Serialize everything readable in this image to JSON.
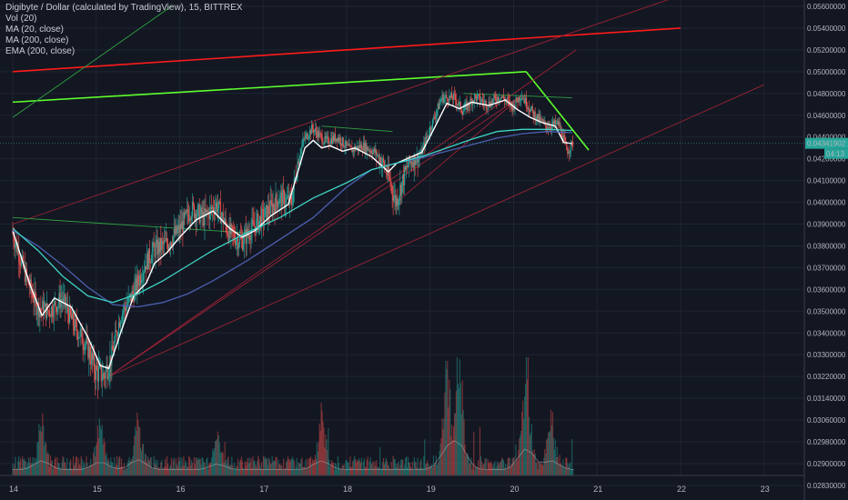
{
  "legend": {
    "title": "Digibyte / Dollar (calculated by TradingView), 15, BITTREX",
    "studies": [
      "Vol (20)",
      "MA (20, close)",
      "MA (200, close)",
      "EMA (200, close)"
    ]
  },
  "current_price": {
    "value": "0.04341902",
    "countdown": "04:13",
    "color": "#26a69a"
  },
  "colors": {
    "background": "#131722",
    "grid": "#1f2433",
    "candle_up": "#26a69a",
    "candle_down": "#ef5350",
    "ma20": "#ffffff",
    "ma200": "#4c5fb0",
    "ema200": "#3fd3c4",
    "line_red": "#ff1a1a",
    "line_green": "#5dff2d",
    "channel_red": "#9b2235",
    "channel_green": "#2fa042"
  },
  "chart_data": {
    "type": "candlestick",
    "symbol": "Digibyte / Dollar",
    "interval": "15",
    "exchange": "BITTREX",
    "y_axis": {
      "ticks": [
        "0.05600000",
        "0.05400000",
        "0.05200000",
        "0.05000000",
        "0.04800000",
        "0.04600000",
        "0.04400000",
        "0.04200000",
        "0.04100000",
        "0.04000000",
        "0.03900000",
        "0.03800000",
        "0.03700000",
        "0.03600000",
        "0.03500000",
        "0.03400000",
        "0.03300000",
        "0.03220000",
        "0.03140000",
        "0.03060000",
        "0.02980000",
        "0.02900000",
        "0.02830000",
        "0.02760000"
      ]
    },
    "x_axis": {
      "ticks": [
        "14",
        "15",
        "16",
        "17",
        "18",
        "19",
        "20",
        "21",
        "22",
        "23"
      ],
      "range": [
        14,
        23
      ]
    },
    "series": [
      {
        "name": "MA (20, close)",
        "color": "#ffffff",
        "x": [
          14.0,
          14.2,
          14.35,
          14.5,
          14.7,
          14.9,
          15.05,
          15.15,
          15.3,
          15.45,
          15.6,
          15.7,
          15.85,
          16.0,
          16.2,
          16.4,
          16.6,
          16.75,
          16.9,
          17.1,
          17.3,
          17.5,
          17.6,
          17.7,
          17.8,
          17.95,
          18.1,
          18.3,
          18.5,
          18.6,
          18.75,
          18.9,
          19.05,
          19.2,
          19.35,
          19.5,
          19.7,
          19.9,
          20.05,
          20.2,
          20.35,
          20.5,
          20.6,
          20.7
        ],
        "y": [
          0.0387,
          0.0363,
          0.0348,
          0.0356,
          0.0352,
          0.0338,
          0.0326,
          0.0325,
          0.0341,
          0.0357,
          0.0363,
          0.0372,
          0.0377,
          0.0384,
          0.0392,
          0.0396,
          0.0388,
          0.0384,
          0.0387,
          0.0394,
          0.0399,
          0.043,
          0.0437,
          0.043,
          0.0432,
          0.0427,
          0.043,
          0.0422,
          0.0414,
          0.0418,
          0.0421,
          0.0426,
          0.0448,
          0.0471,
          0.0466,
          0.0472,
          0.0469,
          0.0474,
          0.0465,
          0.0458,
          0.0453,
          0.045,
          0.0435,
          0.0434
        ]
      },
      {
        "name": "MA (200, close)",
        "color": "#4c5fb0",
        "x": [
          14.0,
          14.3,
          14.6,
          14.9,
          15.2,
          15.5,
          15.8,
          16.1,
          16.4,
          16.8,
          17.2,
          17.6,
          18.0,
          18.3,
          18.6,
          18.9,
          19.2,
          19.5,
          19.8,
          20.1,
          20.4,
          20.7
        ],
        "y": [
          0.0387,
          0.038,
          0.0371,
          0.0361,
          0.0353,
          0.0352,
          0.0354,
          0.0358,
          0.0364,
          0.0373,
          0.0383,
          0.0393,
          0.0407,
          0.0415,
          0.0418,
          0.0421,
          0.0427,
          0.0433,
          0.0439,
          0.0443,
          0.0445,
          0.0444
        ]
      },
      {
        "name": "EMA (200, close)",
        "color": "#3fd3c4",
        "x": [
          14.0,
          14.3,
          14.6,
          14.9,
          15.2,
          15.5,
          15.8,
          16.1,
          16.4,
          16.8,
          17.2,
          17.6,
          18.0,
          18.3,
          18.6,
          18.9,
          19.2,
          19.5,
          19.8,
          20.1,
          20.4,
          20.7
        ],
        "y": [
          0.0388,
          0.0378,
          0.0366,
          0.0357,
          0.0354,
          0.0358,
          0.0364,
          0.0371,
          0.0378,
          0.0386,
          0.0393,
          0.0402,
          0.0409,
          0.0415,
          0.0418,
          0.0422,
          0.043,
          0.0438,
          0.0445,
          0.0447,
          0.0447,
          0.0446
        ]
      }
    ],
    "price_path": {
      "x": [
        14.0,
        14.15,
        14.3,
        14.45,
        14.6,
        14.75,
        14.9,
        15.0,
        15.1,
        15.2,
        15.3,
        15.45,
        15.6,
        15.7,
        15.85,
        16.0,
        16.15,
        16.3,
        16.45,
        16.6,
        16.75,
        16.9,
        17.05,
        17.2,
        17.35,
        17.5,
        17.6,
        17.75,
        17.9,
        18.05,
        18.2,
        18.35,
        18.5,
        18.6,
        18.75,
        18.9,
        19.0,
        19.15,
        19.3,
        19.4,
        19.55,
        19.7,
        19.85,
        20.0,
        20.1,
        20.25,
        20.4,
        20.55,
        20.65,
        20.72
      ],
      "y": [
        0.0387,
        0.0368,
        0.0352,
        0.035,
        0.0356,
        0.0343,
        0.0334,
        0.0324,
        0.0322,
        0.033,
        0.0348,
        0.0358,
        0.0372,
        0.0378,
        0.0381,
        0.0387,
        0.0397,
        0.0393,
        0.0399,
        0.0386,
        0.0382,
        0.0389,
        0.0395,
        0.0402,
        0.04,
        0.0438,
        0.0448,
        0.0436,
        0.044,
        0.0428,
        0.0432,
        0.0426,
        0.0413,
        0.04,
        0.0418,
        0.0424,
        0.0446,
        0.0476,
        0.0476,
        0.0464,
        0.0477,
        0.047,
        0.0478,
        0.0468,
        0.0479,
        0.0461,
        0.045,
        0.0452,
        0.0427,
        0.04342
      ]
    },
    "volume": {
      "peaks": [
        {
          "x": 14.35,
          "v": 0.4
        },
        {
          "x": 15.05,
          "v": 0.35
        },
        {
          "x": 15.5,
          "v": 0.45
        },
        {
          "x": 16.45,
          "v": 0.25
        },
        {
          "x": 17.7,
          "v": 0.4
        },
        {
          "x": 19.2,
          "v": 0.8
        },
        {
          "x": 19.35,
          "v": 1.0
        },
        {
          "x": 20.15,
          "v": 0.95
        },
        {
          "x": 20.45,
          "v": 0.4
        }
      ]
    },
    "drawings": [
      {
        "name": "red-resistance-line",
        "color": "#ff1a1a",
        "points": [
          [
            14.0,
            0.05
          ],
          [
            22.0,
            0.054
          ]
        ]
      },
      {
        "name": "green-resistance-line",
        "color": "#5dff2d",
        "points": [
          [
            14.0,
            0.0472
          ],
          [
            20.15,
            0.05
          ]
        ]
      },
      {
        "name": "green-descending-line",
        "color": "#5dff2d",
        "points": [
          [
            20.15,
            0.05
          ],
          [
            20.9,
            0.0428
          ]
        ]
      },
      {
        "name": "red-upper-channel",
        "color": "#9b2235",
        "points": [
          [
            14.0,
            0.039
          ],
          [
            22.0,
            0.057
          ]
        ]
      },
      {
        "name": "red-lower-channel",
        "color": "#9b2235",
        "points": [
          [
            15.15,
            0.0322
          ],
          [
            23.0,
            0.0488
          ]
        ]
      },
      {
        "name": "red-fan-line-1",
        "color": "#9b2235",
        "points": [
          [
            15.15,
            0.0322
          ],
          [
            20.75,
            0.052
          ]
        ]
      },
      {
        "name": "red-fan-line-2",
        "color": "#9b2235",
        "points": [
          [
            15.15,
            0.0322
          ],
          [
            20.1,
            0.0478
          ]
        ]
      },
      {
        "name": "red-fan-line-3",
        "color": "#9b2235",
        "points": [
          [
            18.6,
            0.04
          ],
          [
            20.1,
            0.0478
          ]
        ]
      },
      {
        "name": "green-long-diagonal",
        "color": "#2fa042",
        "points": [
          [
            14.0,
            0.0458
          ],
          [
            15.9,
            0.056
          ]
        ]
      },
      {
        "name": "green-flat-line-1",
        "color": "#2fa042",
        "points": [
          [
            14.0,
            0.0393
          ],
          [
            16.8,
            0.0386
          ]
        ]
      },
      {
        "name": "green-flat-line-2",
        "color": "#2fa042",
        "points": [
          [
            17.7,
            0.045
          ],
          [
            18.55,
            0.0445
          ]
        ]
      },
      {
        "name": "green-flat-line-3",
        "color": "#2fa042",
        "points": [
          [
            19.4,
            0.048
          ],
          [
            20.7,
            0.0476
          ]
        ]
      }
    ]
  }
}
